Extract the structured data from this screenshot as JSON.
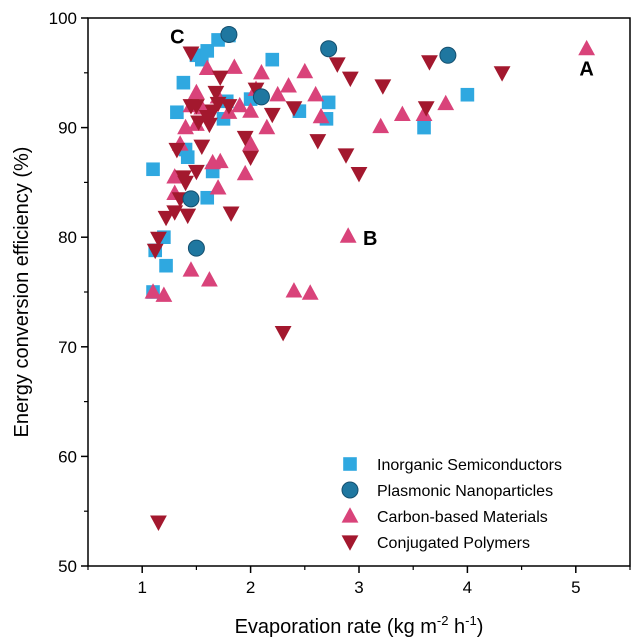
{
  "chart_data": {
    "type": "scatter",
    "xlabel": "Evaporation rate (kg m^-2 h^-1)",
    "ylabel": "Energy conversion efficiency (%)",
    "xlim": [
      0.5,
      5.5
    ],
    "ylim": [
      50,
      100
    ],
    "xticks": [
      1,
      2,
      3,
      4,
      5
    ],
    "yticks": [
      50,
      60,
      70,
      80,
      90,
      100
    ],
    "grid": false,
    "legend_position": "bottom-right",
    "colors": {
      "inorganic": "#2fa8e0",
      "plasmonic": "#1f77a0",
      "carbon": "#d9437a",
      "polymer": "#a3182e"
    },
    "annotations": [
      {
        "text": "A",
        "x": 5.1,
        "y": 95.5
      },
      {
        "text": "B",
        "x": 3.0,
        "y": 80.0
      },
      {
        "text": "C",
        "x": 1.35,
        "y": 98.2
      }
    ],
    "series": [
      {
        "name": "Inorganic Semiconductors",
        "marker": "square",
        "points": [
          [
            1.1,
            86.2
          ],
          [
            1.12,
            78.8
          ],
          [
            1.2,
            80.0
          ],
          [
            1.22,
            77.4
          ],
          [
            1.32,
            91.4
          ],
          [
            1.38,
            94.1
          ],
          [
            1.4,
            88.0
          ],
          [
            1.42,
            87.3
          ],
          [
            1.5,
            96.6
          ],
          [
            1.55,
            96.2
          ],
          [
            1.6,
            97.0
          ],
          [
            1.6,
            83.6
          ],
          [
            1.65,
            86.0
          ],
          [
            1.7,
            98.0
          ],
          [
            1.8,
            98.4
          ],
          [
            1.75,
            90.8
          ],
          [
            1.78,
            92.4
          ],
          [
            2.0,
            92.6
          ],
          [
            2.2,
            96.2
          ],
          [
            2.45,
            91.5
          ],
          [
            2.72,
            92.3
          ],
          [
            2.7,
            90.8
          ],
          [
            3.6,
            90.0
          ],
          [
            4.0,
            93.0
          ],
          [
            1.1,
            75.0
          ]
        ]
      },
      {
        "name": "Plasmonic Nanoparticles",
        "marker": "circle",
        "points": [
          [
            1.45,
            83.5
          ],
          [
            1.5,
            79.0
          ],
          [
            1.8,
            98.5
          ],
          [
            2.1,
            92.8
          ],
          [
            2.72,
            97.2
          ],
          [
            3.82,
            96.6
          ]
        ]
      },
      {
        "name": "Carbon-based Materials",
        "marker": "triangle-up",
        "points": [
          [
            5.1,
            97.2
          ],
          [
            2.9,
            80.1
          ],
          [
            1.1,
            75.0
          ],
          [
            1.2,
            74.7
          ],
          [
            1.45,
            77.0
          ],
          [
            1.62,
            76.1
          ],
          [
            2.4,
            75.1
          ],
          [
            2.55,
            74.9
          ],
          [
            1.3,
            85.5
          ],
          [
            1.35,
            88.5
          ],
          [
            1.4,
            90.0
          ],
          [
            1.45,
            92.0
          ],
          [
            1.5,
            93.2
          ],
          [
            1.55,
            91.8
          ],
          [
            1.6,
            95.4
          ],
          [
            1.65,
            86.8
          ],
          [
            1.7,
            84.5
          ],
          [
            1.72,
            86.9
          ],
          [
            1.8,
            91.4
          ],
          [
            1.85,
            95.5
          ],
          [
            1.95,
            85.8
          ],
          [
            2.0,
            88.5
          ],
          [
            2.05,
            93.5
          ],
          [
            2.1,
            95.0
          ],
          [
            2.15,
            90.0
          ],
          [
            2.25,
            93.0
          ],
          [
            2.35,
            93.8
          ],
          [
            2.5,
            95.1
          ],
          [
            2.6,
            93.0
          ],
          [
            2.65,
            91.0
          ],
          [
            3.2,
            90.1
          ],
          [
            3.4,
            91.2
          ],
          [
            3.6,
            91.2
          ],
          [
            3.8,
            92.2
          ],
          [
            1.3,
            84.0
          ],
          [
            1.5,
            90.3
          ],
          [
            1.7,
            92.8
          ],
          [
            1.9,
            92.0
          ],
          [
            2.0,
            91.5
          ]
        ]
      },
      {
        "name": "Conjugated Polymers",
        "marker": "triangle-down",
        "points": [
          [
            1.15,
            54.0
          ],
          [
            2.3,
            71.3
          ],
          [
            1.12,
            78.8
          ],
          [
            1.15,
            79.9
          ],
          [
            1.22,
            81.8
          ],
          [
            1.3,
            82.3
          ],
          [
            1.35,
            83.5
          ],
          [
            1.38,
            85.5
          ],
          [
            1.42,
            82.0
          ],
          [
            1.45,
            96.8
          ],
          [
            1.5,
            92.0
          ],
          [
            1.52,
            90.5
          ],
          [
            1.55,
            88.3
          ],
          [
            1.6,
            91.0
          ],
          [
            1.62,
            90.3
          ],
          [
            1.68,
            93.2
          ],
          [
            1.72,
            94.6
          ],
          [
            1.8,
            92.0
          ],
          [
            1.82,
            82.2
          ],
          [
            1.95,
            89.1
          ],
          [
            2.0,
            87.3
          ],
          [
            2.05,
            93.5
          ],
          [
            2.2,
            91.2
          ],
          [
            2.4,
            91.8
          ],
          [
            2.62,
            88.8
          ],
          [
            2.8,
            95.8
          ],
          [
            2.88,
            87.5
          ],
          [
            2.92,
            94.5
          ],
          [
            3.0,
            85.8
          ],
          [
            3.22,
            93.8
          ],
          [
            3.62,
            91.8
          ],
          [
            3.65,
            96.0
          ],
          [
            4.32,
            95.0
          ],
          [
            1.45,
            92.0
          ],
          [
            1.5,
            86.0
          ],
          [
            1.4,
            85.0
          ],
          [
            1.32,
            88.0
          ],
          [
            1.65,
            91.5
          ],
          [
            1.7,
            92.2
          ]
        ]
      }
    ]
  }
}
